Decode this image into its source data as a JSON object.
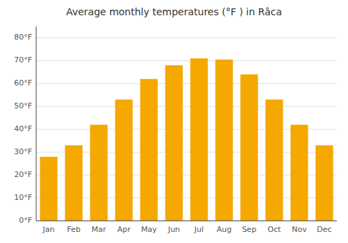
{
  "chart_data": {
    "type": "bar",
    "title": "Average monthly temperatures (°F ) in Râca",
    "categories": [
      "Jan",
      "Feb",
      "Mar",
      "Apr",
      "May",
      "Jun",
      "Jul",
      "Aug",
      "Sep",
      "Oct",
      "Nov",
      "Dec"
    ],
    "values": [
      28,
      33,
      42,
      53,
      62,
      68,
      71,
      70.5,
      64,
      53,
      42,
      33
    ],
    "color": "#F5A800",
    "ylim": [
      0,
      85
    ],
    "yticks": [
      {
        "value": 0,
        "label": "0°F"
      },
      {
        "value": 10,
        "label": "10°F"
      },
      {
        "value": 20,
        "label": "20°F"
      },
      {
        "value": 30,
        "label": "30°F"
      },
      {
        "value": 40,
        "label": "40°F"
      },
      {
        "value": 50,
        "label": "50°F"
      },
      {
        "value": 60,
        "label": "60°F"
      },
      {
        "value": 70,
        "label": "70°F"
      },
      {
        "value": 80,
        "label": "80°F"
      }
    ],
    "grid": true
  }
}
